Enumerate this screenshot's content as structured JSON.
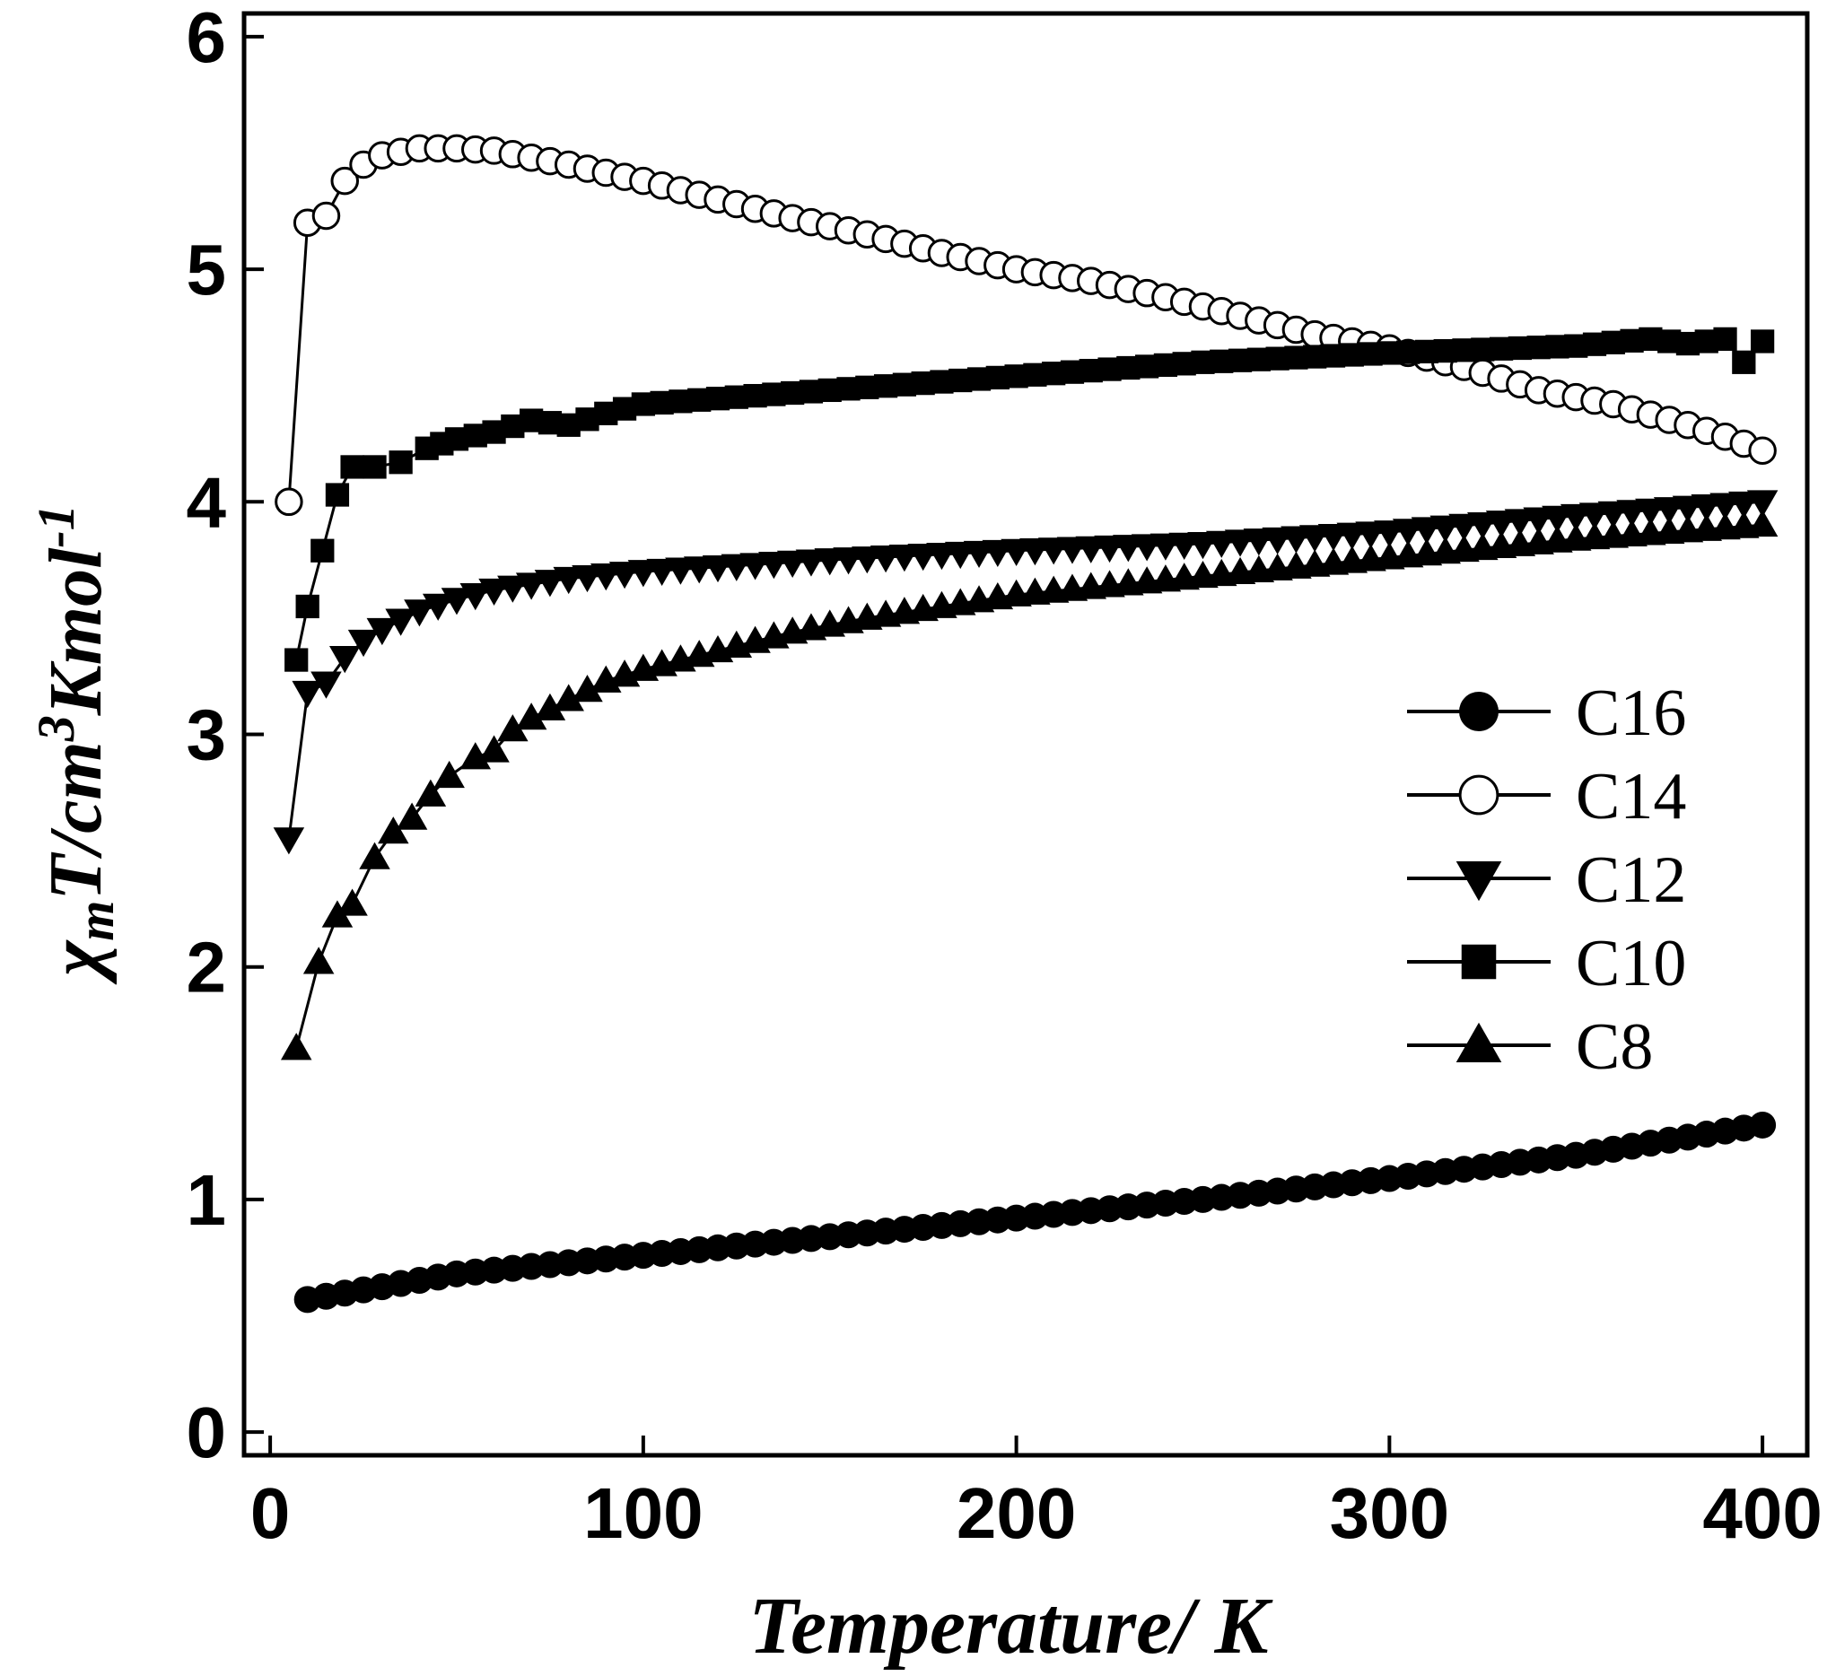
{
  "chart_data": {
    "type": "line",
    "title": "",
    "xlabel": "Temperature/ K",
    "ylabel_main": "χ",
    "ylabel_sub": "m",
    "ylabel_rest_1": "T/cm",
    "ylabel_sup_1": "3",
    "ylabel_rest_2": "Kmol",
    "ylabel_sup_2": "-1",
    "xlim": [
      -7,
      412
    ],
    "ylim": [
      -0.1,
      6.1
    ],
    "xticks": [
      0,
      100,
      200,
      300,
      400
    ],
    "yticks": [
      0,
      1,
      2,
      3,
      4,
      5,
      6
    ],
    "xtick_labels": [
      "0",
      "100",
      "200",
      "300",
      "400"
    ],
    "ytick_labels": [
      "0",
      "1",
      "2",
      "3",
      "4",
      "5",
      "6"
    ],
    "grid": false,
    "legend_position": "right-middle",
    "series": [
      {
        "name": "C16",
        "marker": "filled-circle",
        "points": [
          [
            10,
            0.57
          ],
          [
            50,
            0.68
          ],
          [
            100,
            0.76
          ],
          [
            150,
            0.84
          ],
          [
            200,
            0.92
          ],
          [
            250,
            1.0
          ],
          [
            300,
            1.09
          ],
          [
            350,
            1.19
          ],
          [
            400,
            1.32
          ]
        ]
      },
      {
        "name": "C14",
        "marker": "open-circle",
        "points": [
          [
            5,
            4.0
          ],
          [
            10,
            5.2
          ],
          [
            15,
            5.23
          ],
          [
            20,
            5.38
          ],
          [
            25,
            5.45
          ],
          [
            30,
            5.49
          ],
          [
            40,
            5.52
          ],
          [
            50,
            5.52
          ],
          [
            60,
            5.51
          ],
          [
            80,
            5.45
          ],
          [
            100,
            5.38
          ],
          [
            120,
            5.3
          ],
          [
            140,
            5.22
          ],
          [
            160,
            5.15
          ],
          [
            180,
            5.07
          ],
          [
            200,
            5.0
          ],
          [
            220,
            4.95
          ],
          [
            240,
            4.88
          ],
          [
            260,
            4.8
          ],
          [
            280,
            4.72
          ],
          [
            300,
            4.66
          ],
          [
            320,
            4.58
          ],
          [
            340,
            4.48
          ],
          [
            360,
            4.42
          ],
          [
            380,
            4.33
          ],
          [
            390,
            4.28
          ],
          [
            400,
            4.22
          ]
        ]
      },
      {
        "name": "C12",
        "marker": "filled-triangle-down",
        "points": [
          [
            5,
            2.55
          ],
          [
            10,
            3.18
          ],
          [
            15,
            3.22
          ],
          [
            20,
            3.33
          ],
          [
            25,
            3.4
          ],
          [
            30,
            3.45
          ],
          [
            40,
            3.53
          ],
          [
            50,
            3.58
          ],
          [
            60,
            3.62
          ],
          [
            80,
            3.67
          ],
          [
            100,
            3.7
          ],
          [
            150,
            3.75
          ],
          [
            200,
            3.79
          ],
          [
            250,
            3.82
          ],
          [
            300,
            3.87
          ],
          [
            350,
            3.94
          ],
          [
            400,
            4.0
          ]
        ]
      },
      {
        "name": "C10",
        "marker": "filled-square",
        "points": [
          [
            7,
            3.32
          ],
          [
            10,
            3.55
          ],
          [
            18,
            4.03
          ],
          [
            22,
            4.15
          ],
          [
            28,
            4.15
          ],
          [
            35,
            4.17
          ],
          [
            42,
            4.23
          ],
          [
            50,
            4.27
          ],
          [
            60,
            4.3
          ],
          [
            70,
            4.35
          ],
          [
            80,
            4.33
          ],
          [
            90,
            4.38
          ],
          [
            100,
            4.42
          ],
          [
            150,
            4.48
          ],
          [
            200,
            4.54
          ],
          [
            250,
            4.6
          ],
          [
            300,
            4.64
          ],
          [
            350,
            4.67
          ],
          [
            370,
            4.7
          ],
          [
            380,
            4.68
          ],
          [
            390,
            4.7
          ],
          [
            395,
            4.6
          ],
          [
            400,
            4.69
          ]
        ]
      },
      {
        "name": "C8",
        "marker": "filled-triangle-up",
        "points": [
          [
            7,
            1.65
          ],
          [
            13,
            2.02
          ],
          [
            18,
            2.22
          ],
          [
            22,
            2.27
          ],
          [
            28,
            2.47
          ],
          [
            33,
            2.58
          ],
          [
            38,
            2.64
          ],
          [
            43,
            2.74
          ],
          [
            48,
            2.82
          ],
          [
            55,
            2.9
          ],
          [
            60,
            2.93
          ],
          [
            65,
            3.02
          ],
          [
            70,
            3.07
          ],
          [
            80,
            3.15
          ],
          [
            90,
            3.23
          ],
          [
            100,
            3.28
          ],
          [
            120,
            3.36
          ],
          [
            140,
            3.44
          ],
          [
            160,
            3.5
          ],
          [
            180,
            3.55
          ],
          [
            200,
            3.6
          ],
          [
            250,
            3.68
          ],
          [
            300,
            3.76
          ],
          [
            350,
            3.84
          ],
          [
            400,
            3.9
          ]
        ]
      }
    ]
  }
}
